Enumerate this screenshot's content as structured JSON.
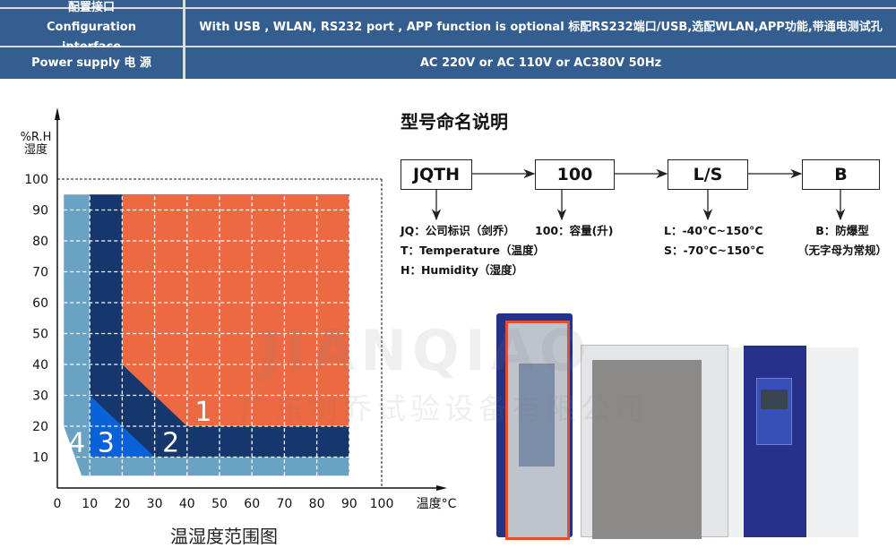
{
  "spec_table": {
    "rows": [
      {
        "label": "配置接口Configuration interface",
        "value": "With USB , WLAN, RS232  port , APP function is optional 标配RS232端口/USB,选配WLAN,APP功能,带通电测试孔"
      },
      {
        "label": "Power supply 电 源",
        "value": "AC 220V or AC 110V or AC380V 50Hz"
      }
    ],
    "colors": {
      "cell": "#345d90",
      "border": "#d9dde3"
    }
  },
  "chart_data": {
    "type": "area",
    "ylabel_line1": "%R.H",
    "ylabel_line2": "湿度",
    "xlabel": "温度°C",
    "xlim": [
      0,
      100
    ],
    "ylim": [
      0,
      100
    ],
    "x_ticks": [
      "0",
      "10",
      "20",
      "30",
      "40",
      "50",
      "60",
      "70",
      "80",
      "90",
      "100"
    ],
    "y_ticks": [
      "100",
      "90",
      "80",
      "70",
      "60",
      "50",
      "40",
      "30",
      "20",
      "10"
    ],
    "regions": [
      {
        "label": "4",
        "color": "#6aa2c4",
        "polygon": [
          [
            2,
            95
          ],
          [
            90,
            95
          ],
          [
            90,
            4
          ],
          [
            7.5,
            4
          ],
          [
            2,
            20
          ]
        ],
        "label_at": [
          6,
          15
        ]
      },
      {
        "label": "2",
        "color": "#15376e",
        "polygon": [
          [
            10,
            95
          ],
          [
            90,
            95
          ],
          [
            90,
            10
          ],
          [
            10,
            10
          ]
        ],
        "label_at": [
          35,
          15
        ]
      },
      {
        "label": "3",
        "color": "#0a62d8",
        "polygon": [
          [
            10,
            30
          ],
          [
            10,
            10
          ],
          [
            30,
            10
          ]
        ],
        "label_at": [
          15,
          15
        ]
      },
      {
        "label": "1",
        "color": "#ec6942",
        "polygon": [
          [
            20,
            95
          ],
          [
            90,
            95
          ],
          [
            90,
            20
          ],
          [
            40,
            20
          ],
          [
            20,
            40
          ]
        ],
        "label_at": [
          45,
          25
        ]
      }
    ],
    "grid": true,
    "caption": "温湿度范围图"
  },
  "naming": {
    "title": "型号命名说明",
    "boxes": [
      "JQTH",
      "100",
      "L/S",
      "B"
    ],
    "notes": {
      "jqth": [
        "JQ：公司标识（剑乔）",
        "T：Temperature（温度）",
        "H：Humidity（湿度）"
      ],
      "capacity": [
        "100：容量(升)"
      ],
      "range": [
        "L：-40°C~150°C",
        "S：-70°C~150°C"
      ],
      "type": [
        "B：防爆型",
        "（无字母为常规）"
      ]
    }
  },
  "watermark": {
    "text1": "JIANQIAO",
    "text2": "广东剑乔试验设备有限公司"
  }
}
